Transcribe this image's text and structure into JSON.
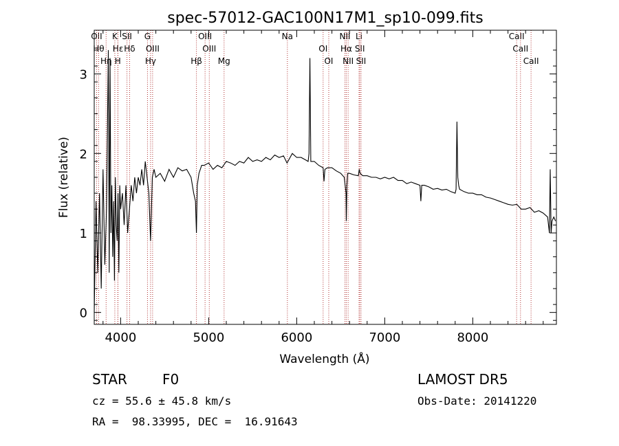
{
  "chart_data": {
    "type": "line",
    "title": "spec-57012-GAC100N17M1_sp10-099.fits",
    "xlabel": "Wavelength (Å)",
    "ylabel": "Flux (relative)",
    "xlim": [
      3700,
      8950
    ],
    "ylim": [
      -0.15,
      3.55
    ],
    "xticks": [
      4000,
      5000,
      6000,
      7000,
      8000
    ],
    "yticks": [
      0,
      1,
      2,
      3
    ],
    "grid": false,
    "series": [
      {
        "x": [
          3700,
          3720,
          3740,
          3760,
          3780,
          3800,
          3820,
          3840,
          3860,
          3870,
          3880,
          3890,
          3900,
          3910,
          3920,
          3930,
          3940,
          3950,
          3960,
          3970,
          3980,
          3990,
          4000,
          4020,
          4040,
          4060,
          4080,
          4100,
          4120,
          4140,
          4160,
          4180,
          4200,
          4220,
          4240,
          4260,
          4280,
          4300,
          4320,
          4340,
          4360,
          4380,
          4400,
          4450,
          4500,
          4550,
          4600,
          4650,
          4700,
          4750,
          4800,
          4830,
          4850,
          4861,
          4870,
          4890,
          4920,
          4950,
          5000,
          5050,
          5100,
          5150,
          5200,
          5250,
          5300,
          5350,
          5400,
          5450,
          5500,
          5550,
          5600,
          5650,
          5700,
          5750,
          5800,
          5850,
          5890,
          5900,
          5950,
          6000,
          6050,
          6100,
          6130,
          6140,
          6150,
          6160,
          6200,
          6250,
          6300,
          6310,
          6320,
          6350,
          6400,
          6450,
          6500,
          6540,
          6560,
          6563,
          6570,
          6580,
          6600,
          6650,
          6700,
          6710,
          6720,
          6750,
          6800,
          6850,
          6900,
          6950,
          7000,
          7050,
          7100,
          7150,
          7200,
          7250,
          7300,
          7350,
          7400,
          7410,
          7420,
          7450,
          7500,
          7550,
          7600,
          7650,
          7700,
          7750,
          7800,
          7810,
          7820,
          7830,
          7840,
          7850,
          7900,
          7950,
          8000,
          8050,
          8100,
          8150,
          8200,
          8250,
          8300,
          8350,
          8400,
          8450,
          8500,
          8550,
          8600,
          8650,
          8700,
          8750,
          8800,
          8850,
          8870,
          8880,
          8890,
          8900,
          8920,
          8940
        ],
        "y": [
          0.0,
          1.4,
          0.5,
          1.5,
          0.3,
          1.8,
          0.6,
          1.3,
          3.3,
          0.5,
          3.2,
          1.0,
          1.6,
          0.7,
          1.4,
          0.4,
          1.7,
          1.1,
          0.9,
          1.5,
          0.5,
          1.6,
          1.3,
          1.5,
          1.1,
          1.6,
          1.0,
          1.3,
          1.6,
          1.4,
          1.7,
          1.5,
          1.7,
          1.6,
          1.8,
          1.6,
          1.9,
          1.7,
          1.5,
          0.9,
          1.7,
          1.8,
          1.7,
          1.75,
          1.65,
          1.8,
          1.7,
          1.82,
          1.78,
          1.8,
          1.7,
          1.5,
          1.4,
          1.0,
          1.6,
          1.75,
          1.85,
          1.85,
          1.88,
          1.8,
          1.85,
          1.82,
          1.9,
          1.88,
          1.85,
          1.9,
          1.88,
          1.95,
          1.9,
          1.92,
          1.9,
          1.95,
          1.92,
          1.98,
          1.95,
          1.97,
          1.88,
          1.9,
          2.0,
          1.95,
          1.95,
          1.92,
          1.9,
          2.0,
          3.2,
          1.9,
          1.9,
          1.85,
          1.82,
          1.65,
          1.8,
          1.82,
          1.82,
          1.78,
          1.75,
          1.7,
          1.5,
          1.15,
          1.6,
          1.75,
          1.75,
          1.73,
          1.72,
          1.8,
          1.75,
          1.72,
          1.72,
          1.7,
          1.7,
          1.68,
          1.7,
          1.68,
          1.7,
          1.66,
          1.66,
          1.62,
          1.64,
          1.62,
          1.6,
          1.4,
          1.6,
          1.6,
          1.58,
          1.55,
          1.56,
          1.54,
          1.55,
          1.52,
          1.5,
          1.55,
          2.4,
          1.7,
          1.6,
          1.55,
          1.52,
          1.5,
          1.5,
          1.48,
          1.48,
          1.45,
          1.44,
          1.42,
          1.4,
          1.38,
          1.36,
          1.35,
          1.36,
          1.3,
          1.3,
          1.32,
          1.26,
          1.28,
          1.25,
          1.2,
          1.0,
          1.8,
          1.0,
          1.15,
          1.2,
          1.15
        ]
      }
    ],
    "line_marks": [
      {
        "label": "OII",
        "x": 3727
      },
      {
        "label": "Hθ",
        "x": 3750
      },
      {
        "label": "Hη",
        "x": 3835
      },
      {
        "label": "K",
        "x": 3934
      },
      {
        "label": "Hε",
        "x": 3970
      },
      {
        "label": "H",
        "x": 3968
      },
      {
        "label": "SII",
        "x": 4072
      },
      {
        "label": "Hδ",
        "x": 4102
      },
      {
        "label": "Hγ",
        "x": 4340
      },
      {
        "label": "G",
        "x": 4305
      },
      {
        "label": "OIII",
        "x": 4363
      },
      {
        "label": "Hβ",
        "x": 4861
      },
      {
        "label": "OIII",
        "x": 4959
      },
      {
        "label": "OIII",
        "x": 5007
      },
      {
        "label": "Mg",
        "x": 5175
      },
      {
        "label": "Na",
        "x": 5894
      },
      {
        "label": "OI",
        "x": 6300
      },
      {
        "label": "OI",
        "x": 6364
      },
      {
        "label": "NII",
        "x": 6548
      },
      {
        "label": "Hα",
        "x": 6563
      },
      {
        "label": "NII",
        "x": 6584
      },
      {
        "label": "Li",
        "x": 6708
      },
      {
        "label": "SII",
        "x": 6717
      },
      {
        "label": "SII",
        "x": 6731
      },
      {
        "label": "CaII",
        "x": 8498
      },
      {
        "label": "CaII",
        "x": 8542
      },
      {
        "label": "CaII",
        "x": 8662
      }
    ]
  },
  "info": {
    "obj_class": "STAR",
    "subclass": "F0",
    "survey": "LAMOST DR5",
    "cz": "cz = 55.6 ± 45.8 km/s",
    "obs_date": "Obs-Date: 20141220",
    "radec": "RA =  98.33995, DEC =  16.91643"
  },
  "colors": {
    "line_mark": "#b03030",
    "spectrum": "#000000"
  }
}
